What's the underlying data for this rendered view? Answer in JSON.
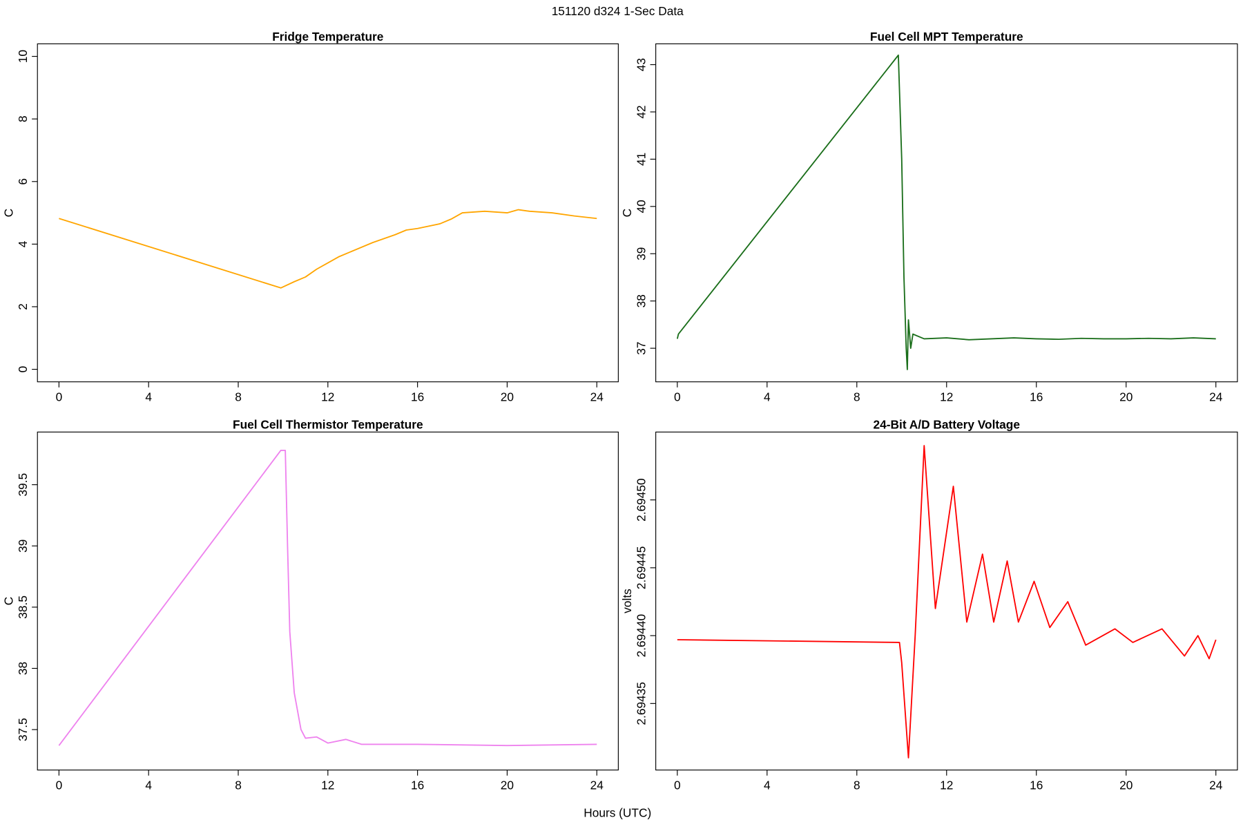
{
  "title": "151120   d324   1-Sec Data",
  "x_label": "Hours (UTC)",
  "chart_data": [
    {
      "type": "line",
      "title": "Fridge Temperature",
      "y_label": "C",
      "xlim": [
        -0.96,
        24.96
      ],
      "xticks": [
        0,
        4,
        8,
        12,
        16,
        20,
        24
      ],
      "ylim": [
        -0.4,
        10.4
      ],
      "yticks": [
        0,
        2,
        4,
        6,
        8,
        10
      ],
      "series": [
        {
          "name": "Fridge",
          "color": "#ffa500",
          "x": [
            0,
            9.9,
            10.5,
            11,
            11.5,
            12,
            12.5,
            13,
            14,
            15,
            15.5,
            16,
            17,
            17.5,
            18,
            19,
            20,
            20.5,
            21,
            22,
            23,
            24
          ],
          "values": [
            4.82,
            2.6,
            2.8,
            2.95,
            3.2,
            3.4,
            3.6,
            3.75,
            4.05,
            4.3,
            4.45,
            4.5,
            4.65,
            4.8,
            5.0,
            5.05,
            5.0,
            5.1,
            5.05,
            5.0,
            4.9,
            4.82
          ]
        }
      ]
    },
    {
      "type": "line",
      "title": "Fuel Cell MPT Temperature",
      "y_label": "C",
      "xlim": [
        -0.96,
        24.96
      ],
      "xticks": [
        0,
        4,
        8,
        12,
        16,
        20,
        24
      ],
      "ylim": [
        36.29,
        43.44
      ],
      "yticks": [
        37,
        38,
        39,
        40,
        41,
        42,
        43
      ],
      "series": [
        {
          "name": "MPT",
          "color": "#1a6e1a",
          "x": [
            0,
            0.05,
            9.85,
            10.0,
            10.1,
            10.2,
            10.25,
            10.3,
            10.4,
            10.5,
            11,
            12,
            13,
            14,
            15,
            16,
            17,
            18,
            19,
            20,
            21,
            22,
            23,
            24
          ],
          "values": [
            37.2,
            37.3,
            43.2,
            41.0,
            38.5,
            37.0,
            36.55,
            37.6,
            37.0,
            37.3,
            37.2,
            37.22,
            37.18,
            37.2,
            37.22,
            37.2,
            37.19,
            37.21,
            37.2,
            37.2,
            37.21,
            37.2,
            37.22,
            37.2
          ]
        }
      ]
    },
    {
      "type": "line",
      "title": "Fuel Cell Thermistor Temperature",
      "y_label": "C",
      "xlim": [
        -0.96,
        24.96
      ],
      "xticks": [
        0,
        4,
        8,
        12,
        16,
        20,
        24
      ],
      "ylim": [
        37.17,
        39.93
      ],
      "yticks": [
        37.5,
        38.0,
        38.5,
        39.0,
        39.5
      ],
      "series": [
        {
          "name": "Thermistor",
          "color": "#ee82ee",
          "x": [
            0,
            9.9,
            10.1,
            10.2,
            10.3,
            10.5,
            10.8,
            11,
            11.5,
            12,
            12.8,
            13.5,
            16,
            20,
            24
          ],
          "values": [
            37.37,
            39.78,
            39.78,
            39.0,
            38.3,
            37.8,
            37.5,
            37.43,
            37.44,
            37.39,
            37.42,
            37.38,
            37.38,
            37.37,
            37.38
          ]
        }
      ]
    },
    {
      "type": "line",
      "title": "24-Bit A/D Battery Voltage",
      "y_label": "volts",
      "xlim": [
        -0.96,
        24.96
      ],
      "xticks": [
        0,
        4,
        8,
        12,
        16,
        20,
        24
      ],
      "ylim": [
        2.694301,
        2.69455
      ],
      "yticks": [
        2.69435,
        {
          "value": 2.6944,
          "label": "2.69440"
        },
        2.69445,
        {
          "value": 2.6945,
          "label": "2.69450"
        }
      ],
      "series": [
        {
          "name": "Battery",
          "color": "#ff0000",
          "x": [
            0,
            9.9,
            10.0,
            10.3,
            10.6,
            11.0,
            11.5,
            12.3,
            12.9,
            13.6,
            14.1,
            14.7,
            15.2,
            15.9,
            16.6,
            17.4,
            18.2,
            19.5,
            20.3,
            21.6,
            22.6,
            23.2,
            23.7,
            24
          ],
          "values": [
            2.694397,
            2.694395,
            2.69438,
            2.69431,
            2.6944,
            2.69454,
            2.69442,
            2.69451,
            2.69441,
            2.69446,
            2.69441,
            2.694455,
            2.69441,
            2.69444,
            2.694406,
            2.694425,
            2.694393,
            2.694405,
            2.694395,
            2.694405,
            2.694385,
            2.6944,
            2.694383,
            2.694397
          ]
        }
      ]
    }
  ]
}
